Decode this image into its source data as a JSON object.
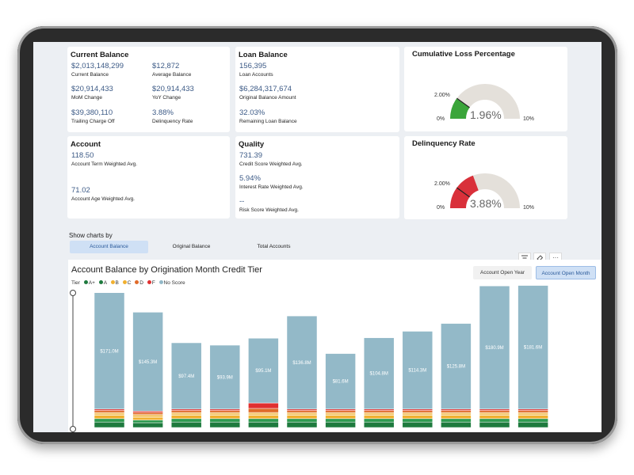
{
  "current_balance": {
    "title": "Current Balance",
    "metrics": [
      {
        "value": "$2,013,148,299",
        "label": "Current Balance"
      },
      {
        "value": "$12,872",
        "label": "Average Balance"
      },
      {
        "value": "$20,914,433",
        "label": "MoM Change"
      },
      {
        "value": "$20,914,433",
        "label": "YoY Change"
      },
      {
        "value": "$39,380,110",
        "label": "Trailing Charge Off"
      },
      {
        "value": "3.88%",
        "label": "Delinquency Rate"
      }
    ]
  },
  "loan_balance": {
    "title": "Loan Balance",
    "metrics": [
      {
        "value": "156,395",
        "label": "Loan Accounts"
      },
      {
        "value": "$6,284,317,674",
        "label": "Original Balance Amount"
      },
      {
        "value": "32.03%",
        "label": "Remaining Loan Balance"
      }
    ]
  },
  "account": {
    "title": "Account",
    "metrics": [
      {
        "value": "118.50",
        "label": "Account Term Weighted Avg."
      },
      {
        "value": "71.02",
        "label": "Account Age Weighted Avg."
      }
    ]
  },
  "quality": {
    "title": "Quality",
    "metrics": [
      {
        "value": "731.39",
        "label": "Credit Score Weighted Avg."
      },
      {
        "value": "5.94%",
        "label": "Interest Rate Weighted Avg."
      },
      {
        "value": "--",
        "label": "Risk Score Weighted Avg."
      }
    ]
  },
  "gauges": [
    {
      "title": "Cumulative Loss Percentage",
      "value_text": "1.96%",
      "value": 1.96,
      "target_text": "2.00%",
      "target": 2.0,
      "min": "0%",
      "max": "10%",
      "max_value": 10,
      "color": "#3aa53a"
    },
    {
      "title": "Delinquency Rate",
      "value_text": "3.88%",
      "value": 3.88,
      "target_text": "2.00%",
      "target": 2.0,
      "min": "0%",
      "max": "10%",
      "max_value": 10,
      "color": "#d9303a"
    }
  ],
  "show_charts": {
    "label": "Show charts by",
    "options": [
      "Account Balance",
      "Original Balance",
      "Total Accounts"
    ],
    "selected": "Account Balance"
  },
  "toolbar": {
    "filter_icon": "filter-icon",
    "eraser_icon": "eraser-icon",
    "more_icon": "more-icon",
    "more_label": "···"
  },
  "chart": {
    "title": "Account Balance by Origination Month Credit Tier",
    "tabs": [
      "Account Open Year",
      "Account Open Month"
    ],
    "active_tab": "Account Open Month",
    "legend_title": "Tier",
    "legend": [
      {
        "name": "A+",
        "color": "#1e7a3e"
      },
      {
        "name": "A",
        "color": "#1e7a3e"
      },
      {
        "name": "B",
        "color": "#f0b030"
      },
      {
        "name": "C",
        "color": "#f0b030"
      },
      {
        "name": "D",
        "color": "#e06b2a"
      },
      {
        "name": "F",
        "color": "#e03030"
      },
      {
        "name": "No Score",
        "color": "#93b9c8"
      }
    ]
  },
  "chart_data": {
    "type": "bar",
    "stacked": true,
    "title": "Account Balance by Origination Month Credit Tier",
    "legend_title": "Tier",
    "labels": [
      "$171.0M",
      "$145.3M",
      "$97.4M",
      "$93.9M",
      "$95.1M",
      "$136.8M",
      "$81.6M",
      "$104.8M",
      "$114.3M",
      "$125.8M",
      "$180.9M",
      "$181.6M"
    ],
    "series": [
      {
        "name": "No Score",
        "color": "#93b9c8",
        "values": [
          171.0,
          145.3,
          97.4,
          93.9,
          95.1,
          136.8,
          81.6,
          104.8,
          114.3,
          125.8,
          180.9,
          181.6
        ]
      },
      {
        "name": "A+",
        "color": "#1e7a3e",
        "values": [
          8,
          7,
          8,
          8,
          8,
          8,
          8,
          8,
          8,
          8,
          8,
          8
        ]
      },
      {
        "name": "A",
        "color": "#2e9a50",
        "values": [
          5,
          4,
          5,
          5,
          5,
          5,
          5,
          5,
          5,
          5,
          5,
          5
        ]
      },
      {
        "name": "B",
        "color": "#f0b030",
        "values": [
          5,
          4,
          5,
          5,
          5,
          5,
          5,
          5,
          5,
          5,
          5,
          5
        ]
      },
      {
        "name": "C",
        "color": "#f4c870",
        "values": [
          4,
          4,
          4,
          4,
          4,
          4,
          4,
          4,
          4,
          4,
          4,
          4
        ]
      },
      {
        "name": "D",
        "color": "#e06b2a",
        "values": [
          3,
          3,
          3,
          3,
          6,
          3,
          3,
          3,
          3,
          3,
          3,
          3
        ]
      },
      {
        "name": "F",
        "color": "#e03030",
        "values": [
          2,
          2,
          2,
          2,
          8,
          2,
          2,
          2,
          2,
          2,
          2,
          2
        ]
      }
    ],
    "ylim": [
      0,
      200
    ],
    "grid": false,
    "legend_position": "top-left"
  }
}
